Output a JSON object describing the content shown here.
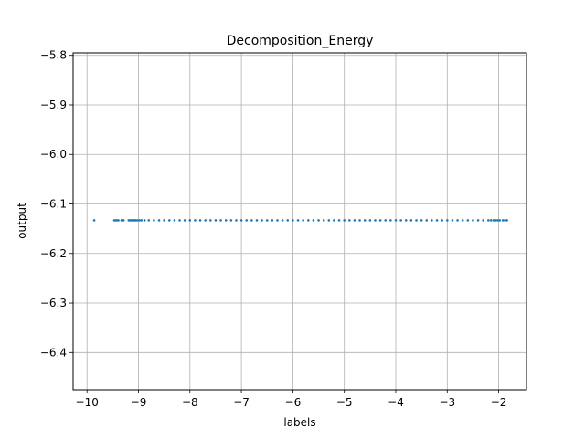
{
  "chart_data": {
    "type": "scatter",
    "title": "Decomposition_Energy",
    "xlabel": "labels",
    "ylabel": "output",
    "xlim": [
      -10.27,
      -1.46
    ],
    "ylim": [
      -6.475,
      -5.795
    ],
    "xticks": [
      -10,
      -9,
      -8,
      -7,
      -6,
      -5,
      -4,
      -3,
      -2
    ],
    "xtick_labels": [
      "−10",
      "−9",
      "−8",
      "−7",
      "−6",
      "−5",
      "−4",
      "−3",
      "−2"
    ],
    "yticks": [
      -5.8,
      -5.9,
      -6.0,
      -6.1,
      -6.2,
      -6.3,
      -6.4
    ],
    "ytick_labels": [
      "−5.8",
      "−5.9",
      "−6.0",
      "−6.1",
      "−6.2",
      "−6.3",
      "−6.4"
    ],
    "grid": true,
    "color": "#1f77b4",
    "series": [
      {
        "y_constant": -6.133,
        "x": [
          -9.86,
          -9.47,
          -9.44,
          -9.42,
          -9.39,
          -9.33,
          -9.31,
          -9.29,
          -9.19,
          -9.16,
          -9.14,
          -9.11,
          -9.09,
          -9.07,
          -9.05,
          -9.02,
          -8.98,
          -8.94,
          -8.88,
          -8.8,
          -8.7,
          -8.6,
          -8.5,
          -8.4,
          -8.3,
          -8.2,
          -8.1,
          -8.0,
          -7.9,
          -7.8,
          -7.7,
          -7.6,
          -7.5,
          -7.4,
          -7.3,
          -7.2,
          -7.1,
          -7.0,
          -6.9,
          -6.8,
          -6.7,
          -6.6,
          -6.5,
          -6.4,
          -6.3,
          -6.2,
          -6.1,
          -6.0,
          -5.9,
          -5.8,
          -5.7,
          -5.6,
          -5.5,
          -5.4,
          -5.3,
          -5.2,
          -5.1,
          -5.0,
          -4.9,
          -4.8,
          -4.7,
          -4.6,
          -4.5,
          -4.4,
          -4.3,
          -4.2,
          -4.1,
          -4.0,
          -3.9,
          -3.8,
          -3.7,
          -3.6,
          -3.5,
          -3.4,
          -3.3,
          -3.2,
          -3.1,
          -3.0,
          -2.9,
          -2.8,
          -2.7,
          -2.6,
          -2.5,
          -2.4,
          -2.3,
          -2.2,
          -2.15,
          -2.1,
          -2.06,
          -2.02,
          -1.98,
          -1.92,
          -1.88,
          -1.84
        ]
      }
    ]
  }
}
